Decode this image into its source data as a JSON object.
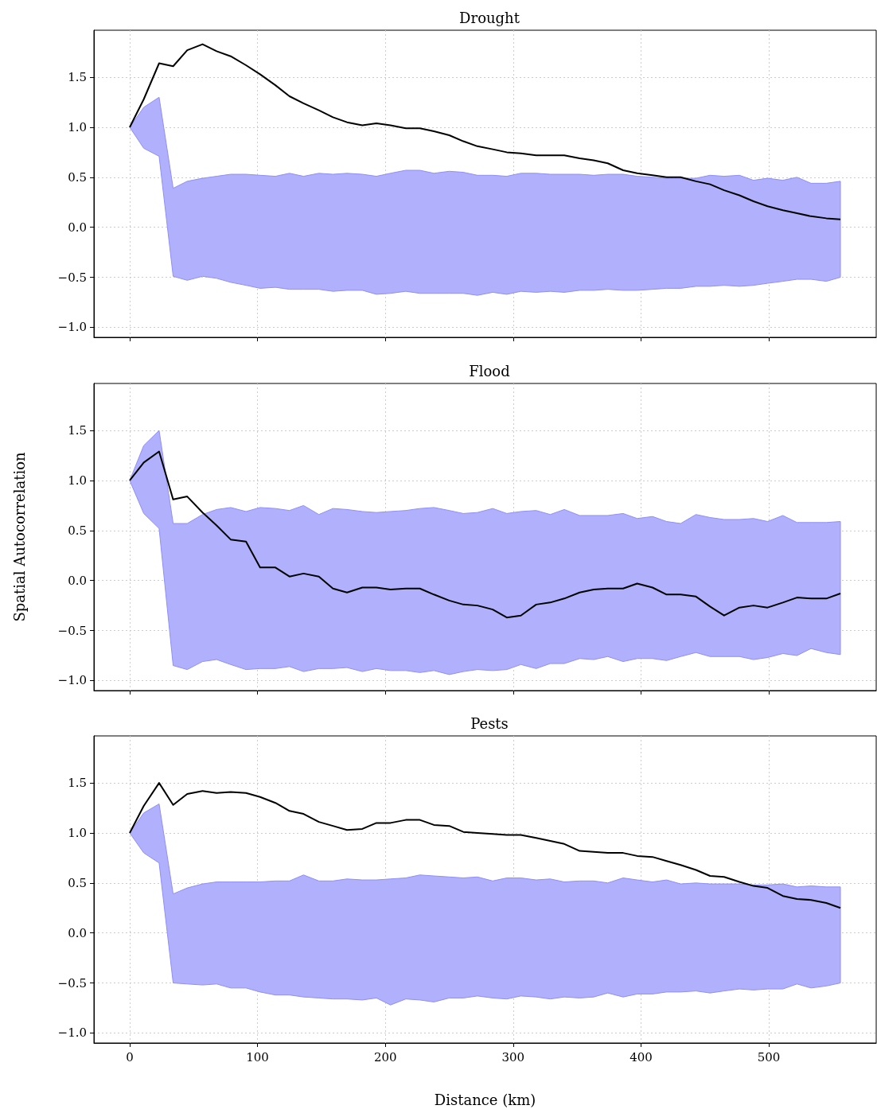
{
  "chart_data": [
    {
      "type": "line",
      "title": "Drought",
      "xlim": [
        -28,
        584
      ],
      "xticks": [
        0,
        100,
        200,
        300,
        400,
        500
      ],
      "ylim": [
        -1.1,
        1.97
      ],
      "yticks": [
        {
          "value": -1,
          "label": "−1.0"
        },
        {
          "value": -0.5,
          "label": "−0.5"
        },
        {
          "value": 0,
          "label": "0.0"
        },
        {
          "value": 0.5,
          "label": "0.5"
        },
        {
          "value": 1,
          "label": "1.0"
        },
        {
          "value": 1.5,
          "label": "1.5"
        }
      ],
      "grid": true,
      "tick_labels": "y",
      "marker": "none",
      "line_style": "solid",
      "x": [
        0,
        11,
        23,
        34,
        45,
        57,
        68,
        79,
        91,
        102,
        114,
        125,
        136,
        148,
        159,
        170,
        182,
        193,
        204,
        216,
        227,
        238,
        250,
        261,
        272,
        284,
        295,
        306,
        318,
        329,
        340,
        352,
        363,
        374,
        386,
        397,
        409,
        420,
        431,
        443,
        454,
        465,
        477,
        488,
        499,
        511,
        522,
        533,
        545,
        556
      ],
      "series": [
        {
          "color": "#000000",
          "values": [
            1.0,
            1.28,
            1.64,
            1.61,
            1.77,
            1.83,
            1.76,
            1.71,
            1.62,
            1.53,
            1.42,
            1.31,
            1.24,
            1.17,
            1.1,
            1.05,
            1.02,
            1.04,
            1.02,
            0.99,
            0.99,
            0.96,
            0.92,
            0.86,
            0.81,
            0.78,
            0.75,
            0.74,
            0.72,
            0.72,
            0.72,
            0.69,
            0.67,
            0.64,
            0.57,
            0.54,
            0.52,
            0.5,
            0.5,
            0.46,
            0.43,
            0.37,
            0.32,
            0.26,
            0.21,
            0.17,
            0.14,
            0.11,
            0.09,
            0.08
          ],
          "upper": [
            1.0,
            1.2,
            1.3,
            0.39,
            0.46,
            0.49,
            0.51,
            0.53,
            0.53,
            0.52,
            0.51,
            0.54,
            0.51,
            0.54,
            0.53,
            0.54,
            0.53,
            0.51,
            0.54,
            0.57,
            0.57,
            0.54,
            0.56,
            0.55,
            0.52,
            0.52,
            0.51,
            0.54,
            0.54,
            0.53,
            0.53,
            0.53,
            0.52,
            0.53,
            0.53,
            0.51,
            0.5,
            0.49,
            0.49,
            0.49,
            0.52,
            0.51,
            0.52,
            0.47,
            0.49,
            0.47,
            0.5,
            0.44,
            0.44,
            0.46
          ],
          "lower": [
            1.0,
            0.79,
            0.71,
            -0.49,
            -0.53,
            -0.49,
            -0.51,
            -0.55,
            -0.58,
            -0.61,
            -0.6,
            -0.62,
            -0.62,
            -0.62,
            -0.64,
            -0.63,
            -0.63,
            -0.67,
            -0.66,
            -0.64,
            -0.66,
            -0.66,
            -0.66,
            -0.66,
            -0.68,
            -0.65,
            -0.67,
            -0.64,
            -0.65,
            -0.64,
            -0.65,
            -0.63,
            -0.63,
            -0.62,
            -0.63,
            -0.63,
            -0.62,
            -0.61,
            -0.61,
            -0.59,
            -0.59,
            -0.58,
            -0.59,
            -0.58,
            -0.56,
            -0.54,
            -0.52,
            -0.52,
            -0.54,
            -0.5
          ]
        }
      ]
    },
    {
      "type": "line",
      "title": "Flood",
      "ylabel": "Spatial Autocorrelation",
      "xlim": [
        -28,
        584
      ],
      "xticks": [
        0,
        100,
        200,
        300,
        400,
        500
      ],
      "ylim": [
        -1.1,
        1.97
      ],
      "yticks": [
        {
          "value": -1,
          "label": "−1.0"
        },
        {
          "value": -0.5,
          "label": "−0.5"
        },
        {
          "value": 0,
          "label": "0.0"
        },
        {
          "value": 0.5,
          "label": "0.5"
        },
        {
          "value": 1,
          "label": "1.0"
        },
        {
          "value": 1.5,
          "label": "1.5"
        }
      ],
      "grid": true,
      "tick_labels": "y",
      "marker": "none",
      "line_style": "solid",
      "x": [
        0,
        11,
        23,
        34,
        45,
        57,
        68,
        79,
        91,
        102,
        114,
        125,
        136,
        148,
        159,
        170,
        182,
        193,
        204,
        216,
        227,
        238,
        250,
        261,
        272,
        284,
        295,
        306,
        318,
        329,
        340,
        352,
        363,
        374,
        386,
        397,
        409,
        420,
        431,
        443,
        454,
        465,
        477,
        488,
        499,
        511,
        522,
        533,
        545,
        556
      ],
      "series": [
        {
          "color": "#000000",
          "values": [
            1.0,
            1.18,
            1.29,
            0.81,
            0.84,
            0.68,
            0.55,
            0.41,
            0.39,
            0.13,
            0.13,
            0.04,
            0.07,
            0.04,
            -0.08,
            -0.12,
            -0.07,
            -0.07,
            -0.09,
            -0.08,
            -0.08,
            -0.14,
            -0.2,
            -0.24,
            -0.25,
            -0.29,
            -0.37,
            -0.35,
            -0.24,
            -0.22,
            -0.18,
            -0.12,
            -0.09,
            -0.08,
            -0.08,
            -0.03,
            -0.07,
            -0.14,
            -0.14,
            -0.16,
            -0.26,
            -0.35,
            -0.27,
            -0.25,
            -0.27,
            -0.22,
            -0.17,
            -0.18,
            -0.18,
            -0.13
          ],
          "upper": [
            1.0,
            1.35,
            1.5,
            0.57,
            0.57,
            0.66,
            0.71,
            0.73,
            0.69,
            0.73,
            0.72,
            0.7,
            0.75,
            0.66,
            0.72,
            0.71,
            0.69,
            0.68,
            0.69,
            0.7,
            0.72,
            0.73,
            0.7,
            0.67,
            0.68,
            0.72,
            0.67,
            0.69,
            0.7,
            0.66,
            0.71,
            0.65,
            0.65,
            0.65,
            0.67,
            0.62,
            0.64,
            0.59,
            0.57,
            0.66,
            0.63,
            0.61,
            0.61,
            0.62,
            0.59,
            0.65,
            0.58,
            0.58,
            0.58,
            0.59
          ],
          "lower": [
            1.0,
            0.67,
            0.52,
            -0.85,
            -0.89,
            -0.81,
            -0.79,
            -0.84,
            -0.89,
            -0.88,
            -0.88,
            -0.86,
            -0.91,
            -0.88,
            -0.88,
            -0.87,
            -0.91,
            -0.88,
            -0.9,
            -0.9,
            -0.92,
            -0.9,
            -0.94,
            -0.91,
            -0.89,
            -0.9,
            -0.89,
            -0.84,
            -0.88,
            -0.83,
            -0.83,
            -0.78,
            -0.79,
            -0.76,
            -0.81,
            -0.78,
            -0.78,
            -0.8,
            -0.76,
            -0.72,
            -0.76,
            -0.76,
            -0.76,
            -0.79,
            -0.77,
            -0.73,
            -0.75,
            -0.68,
            -0.72,
            -0.74
          ]
        }
      ]
    },
    {
      "type": "line",
      "title": "Pests",
      "xlabel": "Distance (km)",
      "xlim": [
        -28,
        584
      ],
      "xticks": [
        0,
        100,
        200,
        300,
        400,
        500
      ],
      "ylim": [
        -1.1,
        1.97
      ],
      "yticks": [
        {
          "value": -1,
          "label": "−1.0"
        },
        {
          "value": -0.5,
          "label": "−0.5"
        },
        {
          "value": 0,
          "label": "0.0"
        },
        {
          "value": 0.5,
          "label": "0.5"
        },
        {
          "value": 1,
          "label": "1.0"
        },
        {
          "value": 1.5,
          "label": "1.5"
        }
      ],
      "grid": true,
      "marker": "none",
      "line_style": "solid",
      "x": [
        0,
        11,
        23,
        34,
        45,
        57,
        68,
        79,
        91,
        102,
        114,
        125,
        136,
        148,
        159,
        170,
        182,
        193,
        204,
        216,
        227,
        238,
        250,
        261,
        272,
        284,
        295,
        306,
        318,
        329,
        340,
        352,
        363,
        374,
        386,
        397,
        409,
        420,
        431,
        443,
        454,
        465,
        477,
        488,
        499,
        511,
        522,
        533,
        545,
        556
      ],
      "series": [
        {
          "color": "#000000",
          "values": [
            1.0,
            1.27,
            1.5,
            1.28,
            1.39,
            1.42,
            1.4,
            1.41,
            1.4,
            1.36,
            1.3,
            1.22,
            1.19,
            1.11,
            1.07,
            1.03,
            1.04,
            1.1,
            1.1,
            1.13,
            1.13,
            1.08,
            1.07,
            1.01,
            1.0,
            0.99,
            0.98,
            0.98,
            0.95,
            0.92,
            0.89,
            0.82,
            0.81,
            0.8,
            0.8,
            0.77,
            0.76,
            0.72,
            0.68,
            0.63,
            0.57,
            0.56,
            0.51,
            0.47,
            0.45,
            0.37,
            0.34,
            0.33,
            0.3,
            0.25
          ],
          "upper": [
            1.0,
            1.2,
            1.29,
            0.39,
            0.45,
            0.49,
            0.51,
            0.51,
            0.51,
            0.51,
            0.52,
            0.52,
            0.58,
            0.52,
            0.52,
            0.54,
            0.53,
            0.53,
            0.54,
            0.55,
            0.58,
            0.57,
            0.56,
            0.55,
            0.56,
            0.52,
            0.55,
            0.55,
            0.53,
            0.54,
            0.51,
            0.52,
            0.52,
            0.5,
            0.55,
            0.53,
            0.51,
            0.53,
            0.49,
            0.5,
            0.49,
            0.49,
            0.49,
            0.48,
            0.48,
            0.49,
            0.46,
            0.47,
            0.46,
            0.46
          ],
          "lower": [
            1.0,
            0.8,
            0.7,
            -0.5,
            -0.51,
            -0.52,
            -0.51,
            -0.55,
            -0.55,
            -0.59,
            -0.62,
            -0.62,
            -0.64,
            -0.65,
            -0.66,
            -0.66,
            -0.67,
            -0.65,
            -0.72,
            -0.66,
            -0.67,
            -0.69,
            -0.65,
            -0.65,
            -0.63,
            -0.65,
            -0.66,
            -0.63,
            -0.64,
            -0.66,
            -0.64,
            -0.65,
            -0.64,
            -0.6,
            -0.64,
            -0.61,
            -0.61,
            -0.59,
            -0.59,
            -0.58,
            -0.6,
            -0.58,
            -0.56,
            -0.57,
            -0.56,
            -0.56,
            -0.51,
            -0.55,
            -0.53,
            -0.5
          ]
        }
      ]
    }
  ]
}
